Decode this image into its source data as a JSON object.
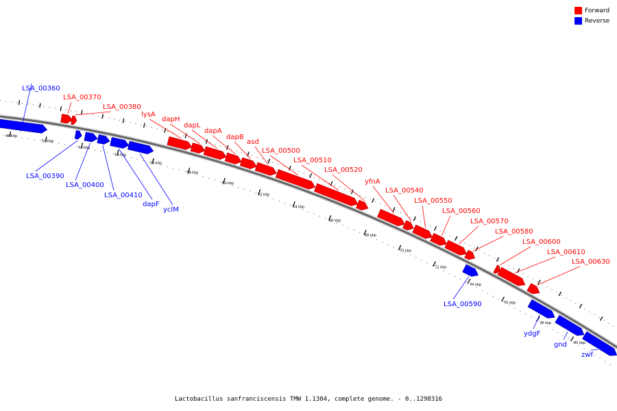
{
  "legend": {
    "forward": {
      "label": "Forward",
      "color": "#ff0000"
    },
    "reverse": {
      "label": "Reverse",
      "color": "#0000ff"
    }
  },
  "caption": "Lactobacillus sanfranciscensis TMW 1.1304, complete genome. - 0..1298316",
  "ticks": [
    "48 kbp",
    "50 kbp",
    "52 kbp",
    "54 kbp",
    "56 kbp",
    "58 kbp",
    "60 kbp",
    "62 kbp",
    "64 kbp",
    "66 kbp",
    "68 kbp",
    "70 kbp",
    "72 kbp",
    "74 kbp",
    "76 kbp",
    "78 kbp",
    "80 kbp"
  ],
  "genes": [
    {
      "name": "LSA_00360",
      "strand": "reverse"
    },
    {
      "name": "LSA_00370",
      "strand": "forward"
    },
    {
      "name": "LSA_00380",
      "strand": "forward"
    },
    {
      "name": "lysA",
      "strand": "forward"
    },
    {
      "name": "dapH",
      "strand": "forward"
    },
    {
      "name": "dapL",
      "strand": "forward"
    },
    {
      "name": "dapA",
      "strand": "forward"
    },
    {
      "name": "dapB",
      "strand": "forward"
    },
    {
      "name": "asd",
      "strand": "forward"
    },
    {
      "name": "LSA_00500",
      "strand": "forward"
    },
    {
      "name": "LSA_00510",
      "strand": "forward"
    },
    {
      "name": "LSA_00520",
      "strand": "forward"
    },
    {
      "name": "yfnA",
      "strand": "forward"
    },
    {
      "name": "LSA_00540",
      "strand": "forward"
    },
    {
      "name": "LSA_00550",
      "strand": "forward"
    },
    {
      "name": "LSA_00560",
      "strand": "forward"
    },
    {
      "name": "LSA_00570",
      "strand": "forward"
    },
    {
      "name": "LSA_00580",
      "strand": "forward"
    },
    {
      "name": "LSA_00600",
      "strand": "forward"
    },
    {
      "name": "LSA_00610",
      "strand": "forward"
    },
    {
      "name": "LSA_00630",
      "strand": "forward"
    },
    {
      "name": "LSA_00390",
      "strand": "reverse"
    },
    {
      "name": "LSA_00400",
      "strand": "reverse"
    },
    {
      "name": "LSA_00410",
      "strand": "reverse"
    },
    {
      "name": "dapF",
      "strand": "reverse"
    },
    {
      "name": "yclM",
      "strand": "reverse"
    },
    {
      "name": "LSA_00590",
      "strand": "reverse"
    },
    {
      "name": "ydgF",
      "strand": "reverse"
    },
    {
      "name": "gnd",
      "strand": "reverse"
    },
    {
      "name": "zwf",
      "strand": "reverse"
    }
  ]
}
